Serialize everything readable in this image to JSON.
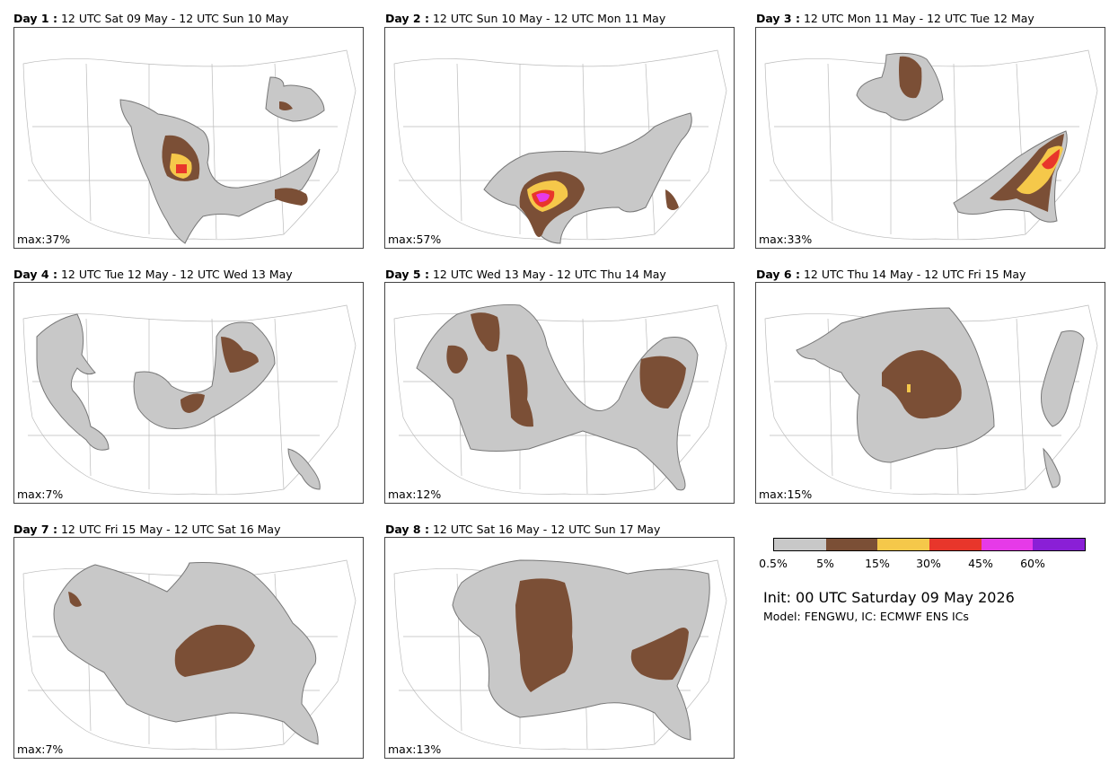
{
  "panels": [
    {
      "day": "Day 1 :",
      "period": "12 UTC Sat 09 May - 12 UTC Sun 10 May",
      "max": "max:37%"
    },
    {
      "day": "Day 2 :",
      "period": "12 UTC Sun 10 May - 12 UTC Mon 11 May",
      "max": "max:57%"
    },
    {
      "day": "Day 3 :",
      "period": "12 UTC Mon 11 May - 12 UTC Tue 12 May",
      "max": "max:33%"
    },
    {
      "day": "Day 4 :",
      "period": "12 UTC Tue 12 May - 12 UTC Wed 13 May",
      "max": "max:7%"
    },
    {
      "day": "Day 5 :",
      "period": "12 UTC Wed 13 May - 12 UTC Thu 14 May",
      "max": "max:12%"
    },
    {
      "day": "Day 6 :",
      "period": "12 UTC Thu 14 May - 12 UTC Fri 15 May",
      "max": "max:15%"
    },
    {
      "day": "Day 7 :",
      "period": "12 UTC Fri 15 May - 12 UTC Sat 16 May",
      "max": "max:7%"
    },
    {
      "day": "Day 8 :",
      "period": "12 UTC Sat 16 May - 12 UTC Sun 17 May",
      "max": "max:13%"
    }
  ],
  "legend": {
    "colors": [
      "#c8c8c8",
      "#7b4f36",
      "#f5c84a",
      "#e8362b",
      "#e63ae8",
      "#8a1fd6"
    ],
    "ticks": [
      "0.5%",
      "5%",
      "15%",
      "30%",
      "45%",
      "60%"
    ]
  },
  "init_text": "Init: 00 UTC Saturday 09 May 2026",
  "model_text": "Model: FENGWU, IC: ECMWF ENS ICs"
}
